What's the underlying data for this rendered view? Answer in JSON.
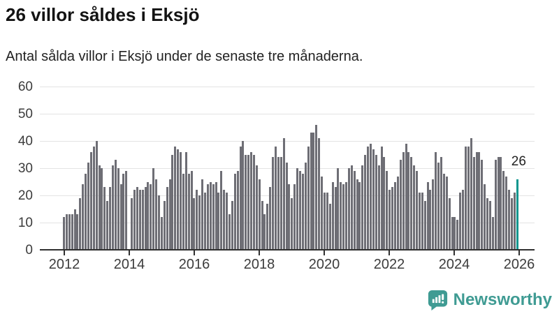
{
  "header": {
    "title": "26 villor såldes i Eksjö",
    "subtitle": "Antal sålda villor i Eksjö under de senaste tre månaderna."
  },
  "chart_data": {
    "type": "bar",
    "title": "26 villor såldes i Eksjö",
    "subtitle": "Antal sålda villor i Eksjö under de senaste tre månaderna.",
    "x_start": "2012-01",
    "x_frequency": "monthly",
    "x_tick_labels": [
      "2012",
      "2014",
      "2016",
      "2018",
      "2020",
      "2022",
      "2024",
      "2026"
    ],
    "y_ticks": [
      0,
      10,
      20,
      30,
      40,
      50,
      60
    ],
    "ylim": [
      0,
      60
    ],
    "grid": true,
    "legend_position": "none",
    "bar_color": "#6e6e75",
    "values": [
      12,
      13,
      13,
      13,
      15,
      13,
      19,
      24,
      28,
      32,
      36,
      38,
      40,
      31,
      30,
      23,
      18,
      23,
      31,
      33,
      30,
      24,
      28,
      29,
      0,
      19,
      22,
      23,
      22,
      22,
      23,
      25,
      24,
      30,
      26,
      20,
      12,
      18,
      23,
      26,
      35,
      38,
      37,
      36,
      28,
      36,
      28,
      29,
      19,
      22,
      20,
      26,
      21,
      24,
      25,
      24,
      25,
      21,
      29,
      22,
      21,
      13,
      18,
      28,
      29,
      38,
      40,
      35,
      35,
      36,
      35,
      31,
      26,
      18,
      13,
      17,
      23,
      34,
      38,
      34,
      34,
      41,
      32,
      24,
      19,
      24,
      30,
      29,
      28,
      32,
      38,
      43,
      43,
      46,
      41,
      27,
      21,
      21,
      17,
      25,
      23,
      30,
      25,
      24,
      25,
      30,
      31,
      29,
      26,
      25,
      31,
      35,
      38,
      39,
      37,
      35,
      31,
      38,
      34,
      29,
      22,
      23,
      25,
      27,
      33,
      36,
      39,
      36,
      34,
      31,
      29,
      21,
      21,
      18,
      25,
      22,
      26,
      36,
      32,
      34,
      28,
      27,
      19,
      12,
      12,
      11,
      21,
      22,
      38,
      38,
      41,
      34,
      36,
      36,
      33,
      24,
      19,
      18,
      12,
      33,
      34,
      34,
      29,
      27,
      22,
      19,
      21,
      26
    ],
    "highlight": {
      "index": 167,
      "value": 26,
      "label": "26",
      "color": "#0b968e"
    }
  },
  "footer": {
    "brand": "Newsworthy"
  },
  "colors": {
    "bar_gray": "#6e6e75",
    "accent_teal": "#0b968e",
    "logo_teal": "#3f9b93",
    "gridline": "#e3e3e3",
    "axis": "#303030",
    "title_text": "#131313",
    "tick_text": "#3c3c3c"
  }
}
